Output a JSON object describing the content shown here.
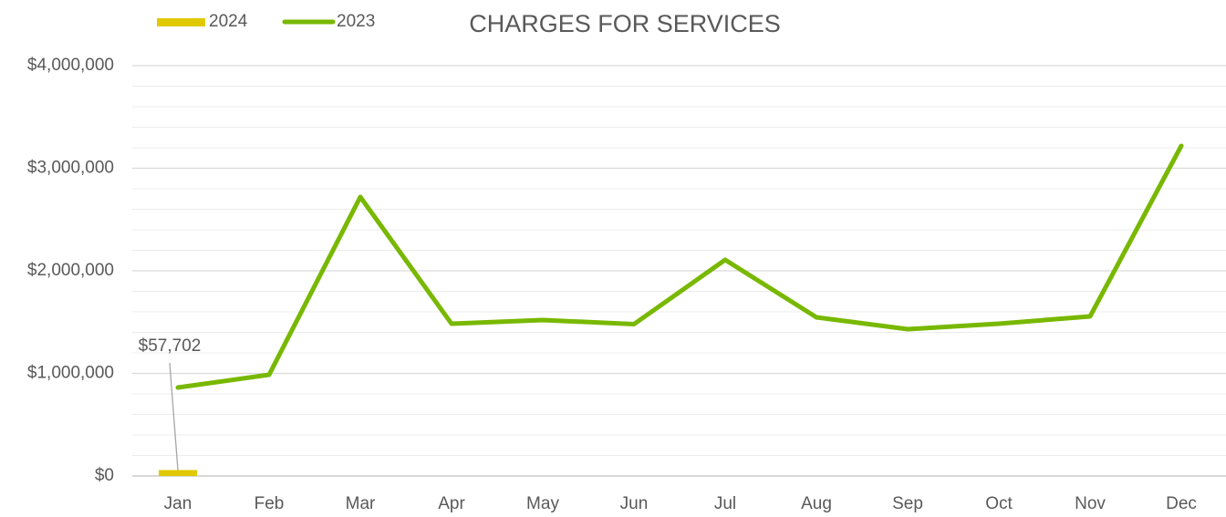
{
  "chart_data": {
    "type": "combo",
    "title": "CHARGES FOR SERVICES",
    "categories": [
      "Jan",
      "Feb",
      "Mar",
      "Apr",
      "May",
      "Jun",
      "Jul",
      "Aug",
      "Sep",
      "Oct",
      "Nov",
      "Dec"
    ],
    "series": [
      {
        "name": "2024",
        "type": "bar",
        "color": "#e0c900",
        "values": [
          57702,
          null,
          null,
          null,
          null,
          null,
          null,
          null,
          null,
          null,
          null,
          null
        ],
        "value_labels": [
          "$57,702",
          null,
          null,
          null,
          null,
          null,
          null,
          null,
          null,
          null,
          null,
          null
        ]
      },
      {
        "name": "2023",
        "type": "line",
        "color": "#78b800",
        "values": [
          862000,
          987000,
          2720000,
          1484000,
          1520000,
          1480000,
          2107000,
          1547000,
          1431000,
          1484000,
          1556000,
          3218000
        ]
      }
    ],
    "ylim": [
      0,
      4000000
    ],
    "yticks": [
      {
        "value": 0,
        "label": "$0"
      },
      {
        "value": 1000000,
        "label": "$1,000,000"
      },
      {
        "value": 2000000,
        "label": "$2,000,000"
      },
      {
        "value": 3000000,
        "label": "$3,000,000"
      },
      {
        "value": 4000000,
        "label": "$4,000,000"
      }
    ],
    "grid": true,
    "minor_grid_step": 200000,
    "legend": "top-left"
  }
}
